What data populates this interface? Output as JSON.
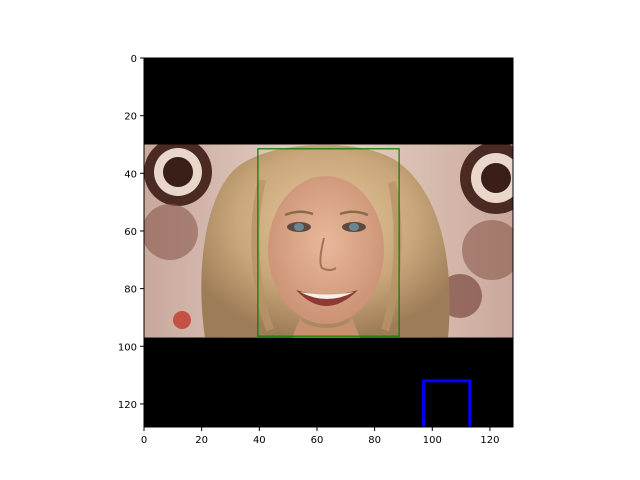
{
  "image_view": {
    "x_ticks": [
      "0",
      "20",
      "40",
      "60",
      "80",
      "100",
      "120"
    ],
    "y_ticks": [
      "0",
      "20",
      "40",
      "60",
      "80",
      "100",
      "120"
    ],
    "x_range": [
      0,
      128
    ],
    "y_range": [
      0,
      128
    ],
    "y_axis_direction": "top-to-bottom",
    "band_color": "#000000",
    "photo_rows": [
      30,
      97
    ],
    "photo_subject": "smiling blonde woman in front of a decorative logo backdrop",
    "boxes": [
      {
        "label_name": "face-box",
        "color": "#008000",
        "x": [
          39.5,
          88.5
        ],
        "y": [
          31.5,
          96.5
        ],
        "style": "thin"
      },
      {
        "label_name": "corner-box",
        "color": "#0000ff",
        "x": [
          97,
          113
        ],
        "y": [
          112,
          128
        ],
        "style": "thick-open-bottom"
      }
    ]
  }
}
